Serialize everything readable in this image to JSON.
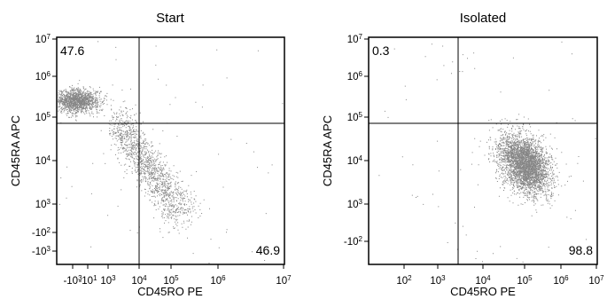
{
  "chart_data": [
    {
      "type": "scatter",
      "title": "Start",
      "xlabel": "CD45RO PE",
      "ylabel": "CD45RA APC",
      "x_ticks": [
        {
          "base": "-10",
          "exp": "3"
        },
        {
          "base": "-10",
          "exp": "1"
        },
        {
          "base": "10",
          "exp": "3"
        },
        {
          "base": "10",
          "exp": "4"
        },
        {
          "base": "10",
          "exp": "5"
        },
        {
          "base": "10",
          "exp": "6"
        },
        {
          "base": "10",
          "exp": "7"
        }
      ],
      "y_ticks": [
        {
          "base": "-10",
          "exp": "3"
        },
        {
          "base": "-10",
          "exp": "2"
        },
        {
          "base": "10",
          "exp": "3"
        },
        {
          "base": "10",
          "exp": "4"
        },
        {
          "base": "10",
          "exp": "5"
        },
        {
          "base": "10",
          "exp": "6"
        },
        {
          "base": "10",
          "exp": "7"
        }
      ],
      "x_scale": "biexponential",
      "y_scale": "biexponential",
      "gate": {
        "x": 3000,
        "y": 70000
      },
      "quadrant_values": {
        "upper_left": "47.6",
        "lower_right": "46.9"
      },
      "populations": [
        {
          "x_log": 2.0,
          "y_log": 5.4,
          "spread_x": 0.35,
          "spread_y": 0.14,
          "weight": 0.48
        },
        {
          "x_log": 4.4,
          "y_log": 3.8,
          "spread_x": 0.55,
          "spread_y": 0.55,
          "weight": 0.47
        }
      ]
    },
    {
      "type": "scatter",
      "title": "Isolated",
      "xlabel": "CD45RO PE",
      "ylabel": "CD45RA APC",
      "x_ticks": [
        {
          "base": "10",
          "exp": "2"
        },
        {
          "base": "10",
          "exp": "3"
        },
        {
          "base": "10",
          "exp": "4"
        },
        {
          "base": "10",
          "exp": "5"
        },
        {
          "base": "10",
          "exp": "6"
        },
        {
          "base": "10",
          "exp": "7"
        }
      ],
      "y_ticks": [
        {
          "base": "-10",
          "exp": "2"
        },
        {
          "base": "10",
          "exp": "3"
        },
        {
          "base": "10",
          "exp": "4"
        },
        {
          "base": "10",
          "exp": "5"
        },
        {
          "base": "10",
          "exp": "6"
        },
        {
          "base": "10",
          "exp": "7"
        }
      ],
      "x_scale": "log",
      "y_scale": "biexponential",
      "gate": {
        "x": 3000,
        "y": 70000
      },
      "quadrant_values": {
        "upper_left": "0.3",
        "lower_right": "98.8"
      },
      "populations": [
        {
          "x_log": 5.1,
          "y_log": 4.1,
          "spread_x": 0.4,
          "spread_y": 0.35,
          "weight": 0.988
        }
      ]
    }
  ]
}
